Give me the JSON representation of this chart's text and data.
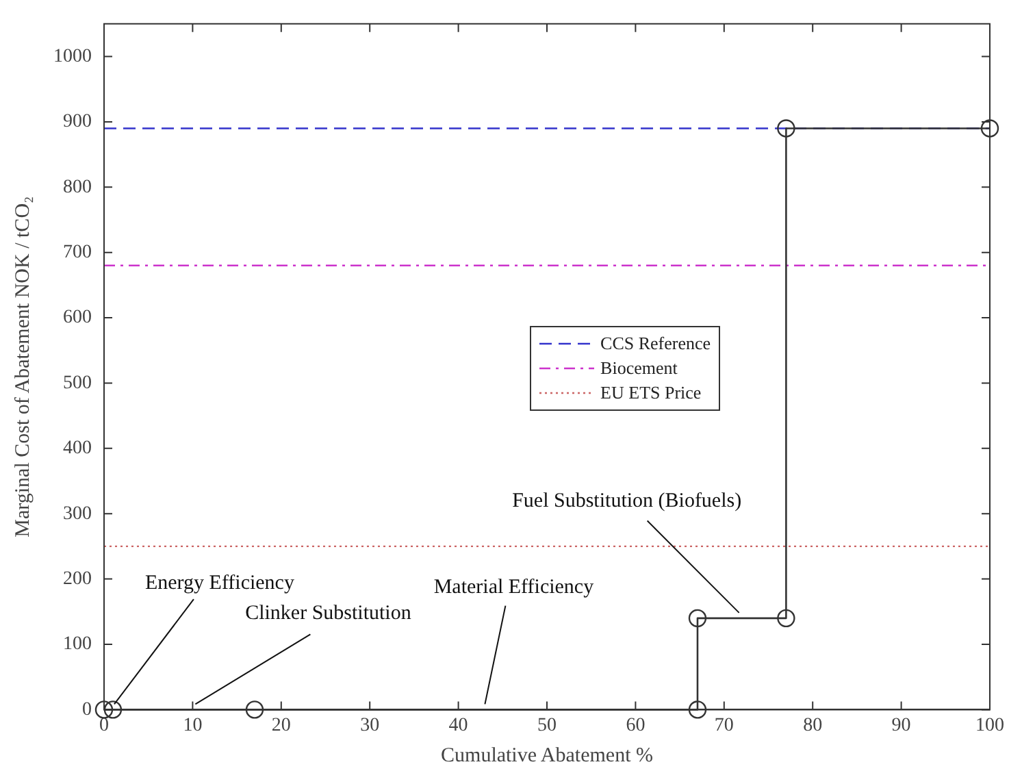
{
  "chart_data": {
    "type": "line",
    "xlabel": "Cumulative Abatement %",
    "ylabel": "Marginal Cost of Abatement NOK / tCO₂",
    "x": [
      0,
      1,
      17,
      67,
      67,
      77,
      77,
      100
    ],
    "series": [
      {
        "color": "#333333",
        "values": [
          0,
          0,
          0,
          0,
          140,
          140,
          890,
          890
        ]
      }
    ],
    "xlim": [
      0,
      100
    ],
    "xticks": [
      0,
      10,
      20,
      30,
      40,
      50,
      60,
      70,
      80,
      90,
      100
    ],
    "ylim": [
      0,
      1050
    ],
    "yticks": [
      0,
      100,
      200,
      300,
      400,
      500,
      600,
      700,
      800,
      900,
      1000
    ],
    "grid": false,
    "marker": "circle",
    "line_style": "solid",
    "legend": "right",
    "ref_lines": [
      {
        "axis": "y",
        "value": 890,
        "label": "CCS Reference",
        "color": "#3333cc",
        "line_style": "dashed"
      },
      {
        "axis": "y",
        "value": 680,
        "label": "Biocement",
        "color": "#cc33cc",
        "line_style": "dashdot"
      },
      {
        "axis": "y",
        "value": 250,
        "label": "EU ETS Price",
        "color": "#cc6666",
        "line_style": "dotted"
      }
    ],
    "annotations": [
      {
        "text": "Energy Efficiency",
        "x": 1,
        "y": 0
      },
      {
        "text": "Clinker Substitution",
        "x": 10,
        "y": 0
      },
      {
        "text": "Material Efficiency",
        "x": 43,
        "y": 0
      },
      {
        "text": "Fuel Substitution (Biofuels)",
        "x": 72,
        "y": 140
      }
    ]
  }
}
